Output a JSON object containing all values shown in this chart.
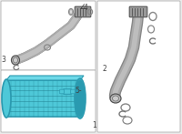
{
  "bg_color": "#ebebeb",
  "box_edge": "#bbbbbb",
  "box_face": "#ffffff",
  "ic_fill": "#4ec8d8",
  "ic_edge": "#2a9ab0",
  "ic_grid": "#1e7a8a",
  "hose_outer": "#aaaaaa",
  "hose_inner": "#d0d0d0",
  "hose_edge": "#888888",
  "connector_fill": "#999999",
  "connector_edge": "#555555",
  "oring_color": "#888888",
  "label_color": "#444444",
  "font_size": 5.5,
  "label1": "1",
  "label2": "2",
  "label3": "3",
  "label4": "4",
  "label5": "5-"
}
